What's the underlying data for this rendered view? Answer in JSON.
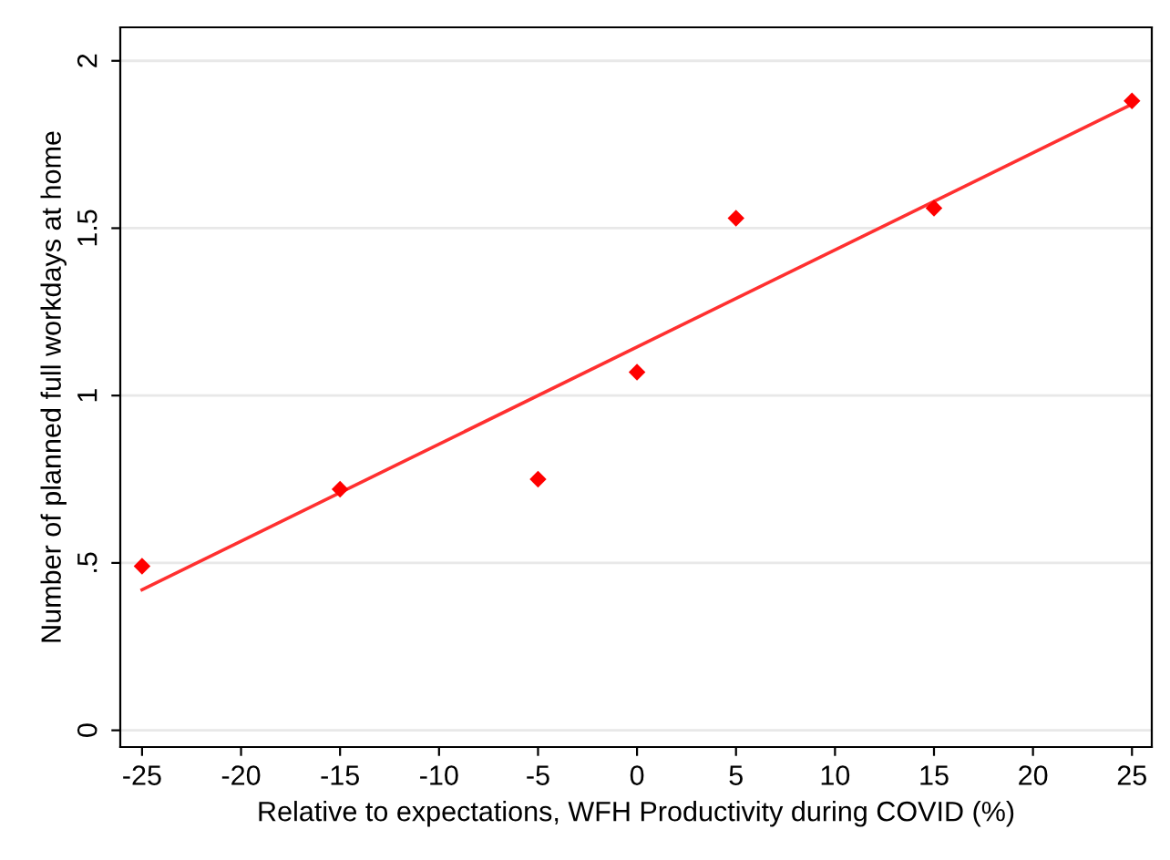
{
  "chart_data": {
    "type": "scatter",
    "xlabel": "Relative to expectations, WFH Productivity during COVID (%)",
    "ylabel": "Number of planned full workdays at home",
    "series": [
      {
        "color": "#ff0000",
        "marker": "diamond",
        "x": [
          -25,
          -15,
          -5,
          0,
          5,
          15,
          25
        ],
        "values": [
          0.49,
          0.72,
          0.75,
          1.07,
          1.53,
          1.56,
          1.88
        ]
      },
      {
        "type": "line",
        "color": "#ff3030",
        "x": [
          -25,
          25
        ],
        "values": [
          0.42,
          1.87
        ]
      }
    ],
    "xlim": [
      -26.1,
      26.0
    ],
    "ylim": [
      -0.05,
      2.1
    ],
    "xticks": [
      -25,
      -20,
      -15,
      -10,
      -5,
      0,
      5,
      10,
      15,
      20,
      25
    ],
    "yticks": [
      0,
      {
        "value": 0.5,
        "label": ".5"
      },
      1,
      1.5,
      2
    ],
    "grid": "y"
  }
}
